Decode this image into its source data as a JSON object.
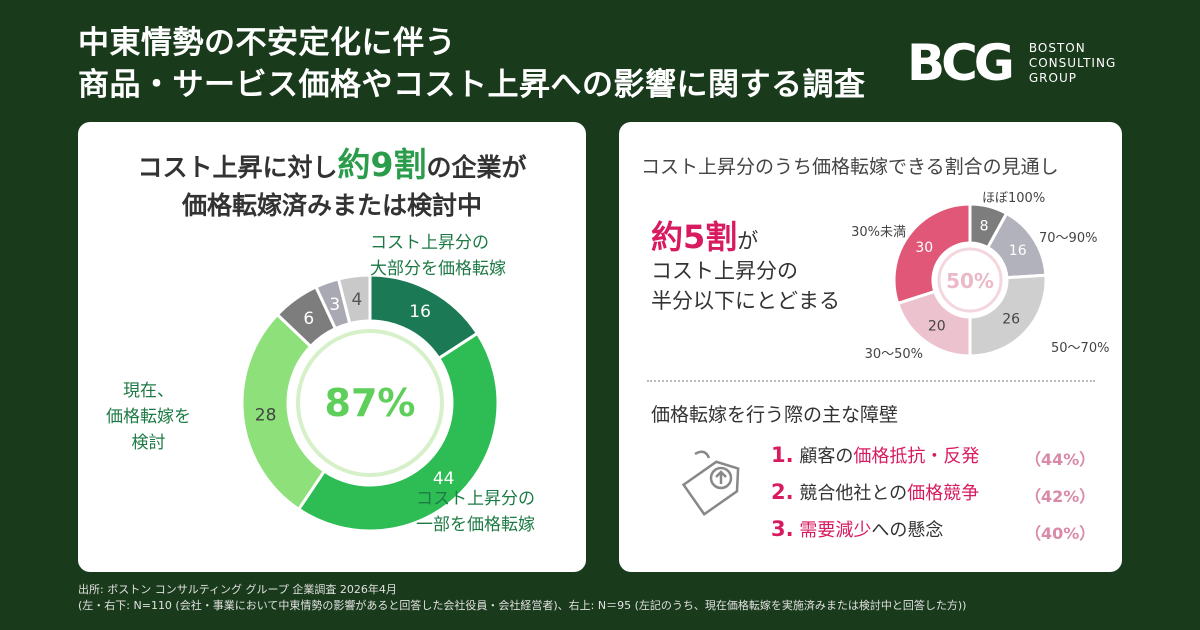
{
  "header": {
    "title_line1": "中東情勢の不安定化に伴う",
    "title_line2": "商品・サービス価格やコスト上昇への影響に関する調査"
  },
  "logo": {
    "mark": "BCG",
    "line1": "BOSTON",
    "line2": "CONSULTING",
    "line3": "GROUP"
  },
  "left": {
    "head_a": "コスト上昇に対し",
    "head_b": "約9割",
    "head_c": "の企業が",
    "head_line2": "価格転嫁済みまたは検討中",
    "center": "87%",
    "label_large_1": "コスト上昇分の",
    "label_large_2": "大部分を価格転嫁",
    "label_part_1": "コスト上昇分の",
    "label_part_2": "一部を価格転嫁",
    "label_consider_1": "現在、",
    "label_consider_2": "価格転嫁を",
    "label_consider_3": "検討"
  },
  "right": {
    "head": "コスト上昇分のうち価格転嫁できる割合の見通し",
    "big_1": "約5割",
    "big_2": "が",
    "big_3": "コスト上昇分の",
    "big_4": "半分以下にとどまる",
    "center": "50%",
    "barrier_head": "価格転嫁を行う際の主な障壁",
    "barriers": [
      {
        "num": "1.",
        "pre": "顧客の",
        "hl": "価格抵抗・反発",
        "post": "",
        "pct": "（44%）"
      },
      {
        "num": "2.",
        "pre": "競合他社との",
        "hl": "価格競争",
        "post": "",
        "pct": "（42%）"
      },
      {
        "num": "3.",
        "pre": "",
        "hl": "需要減少",
        "post": "への懸念",
        "pct": "（40%）"
      }
    ]
  },
  "footer": {
    "line1": "出所: ボストン コンサルティング グループ 企業調査 2026年4月",
    "line2": "(左・右下: N=110 (会社・事業において中東情勢の影響があると回答した会社役員・会社経営者)、右上: N＝95 (左記のうち、現在価格転嫁を実施済みまたは検討中と回答した方))"
  },
  "chart_data": [
    {
      "type": "pie",
      "values": [
        16,
        44,
        28,
        6,
        3,
        4
      ],
      "colors": [
        "#1b7a55",
        "#2ebd55",
        "#8ee07a",
        "#7d7d7d",
        "#a9a9b3",
        "#c9c9c9"
      ],
      "center_label": "87%"
    },
    {
      "type": "pie",
      "categories": [
        "ほぼ100%",
        "70～90%",
        "50～70%",
        "30～50%",
        "30%未満"
      ],
      "values": [
        8,
        16,
        26,
        20,
        30
      ],
      "colors": [
        "#7d7d7d",
        "#b2b2bc",
        "#cfcfcf",
        "#ecc2cf",
        "#e15777"
      ],
      "center_label": "50%"
    }
  ]
}
